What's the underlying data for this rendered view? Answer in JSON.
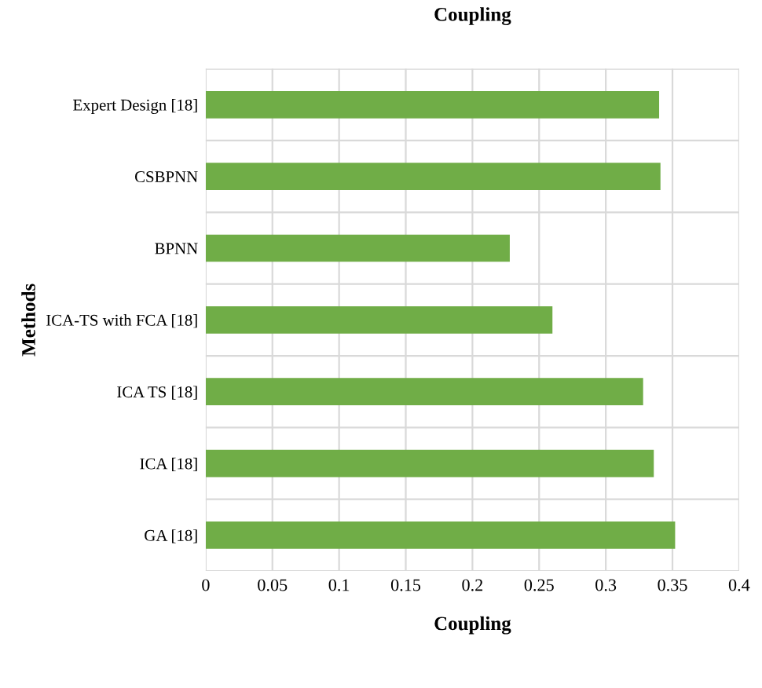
{
  "chart_data": {
    "type": "bar",
    "orientation": "horizontal",
    "title": "Coupling",
    "xlabel": "Coupling",
    "ylabel": "Methods",
    "categories": [
      "Expert Design [18]",
      "CSBPNN",
      "BPNN",
      "ICA-TS with FCA [18]",
      "ICA TS [18]",
      "ICA [18]",
      "GA [18]"
    ],
    "values": [
      0.34,
      0.341,
      0.228,
      0.26,
      0.328,
      0.336,
      0.352
    ],
    "color": "#70ad47",
    "xlim": [
      0,
      0.4
    ],
    "xticks": [
      0,
      0.05,
      0.1,
      0.15,
      0.2,
      0.25,
      0.3,
      0.35,
      0.4
    ],
    "grid": true
  }
}
